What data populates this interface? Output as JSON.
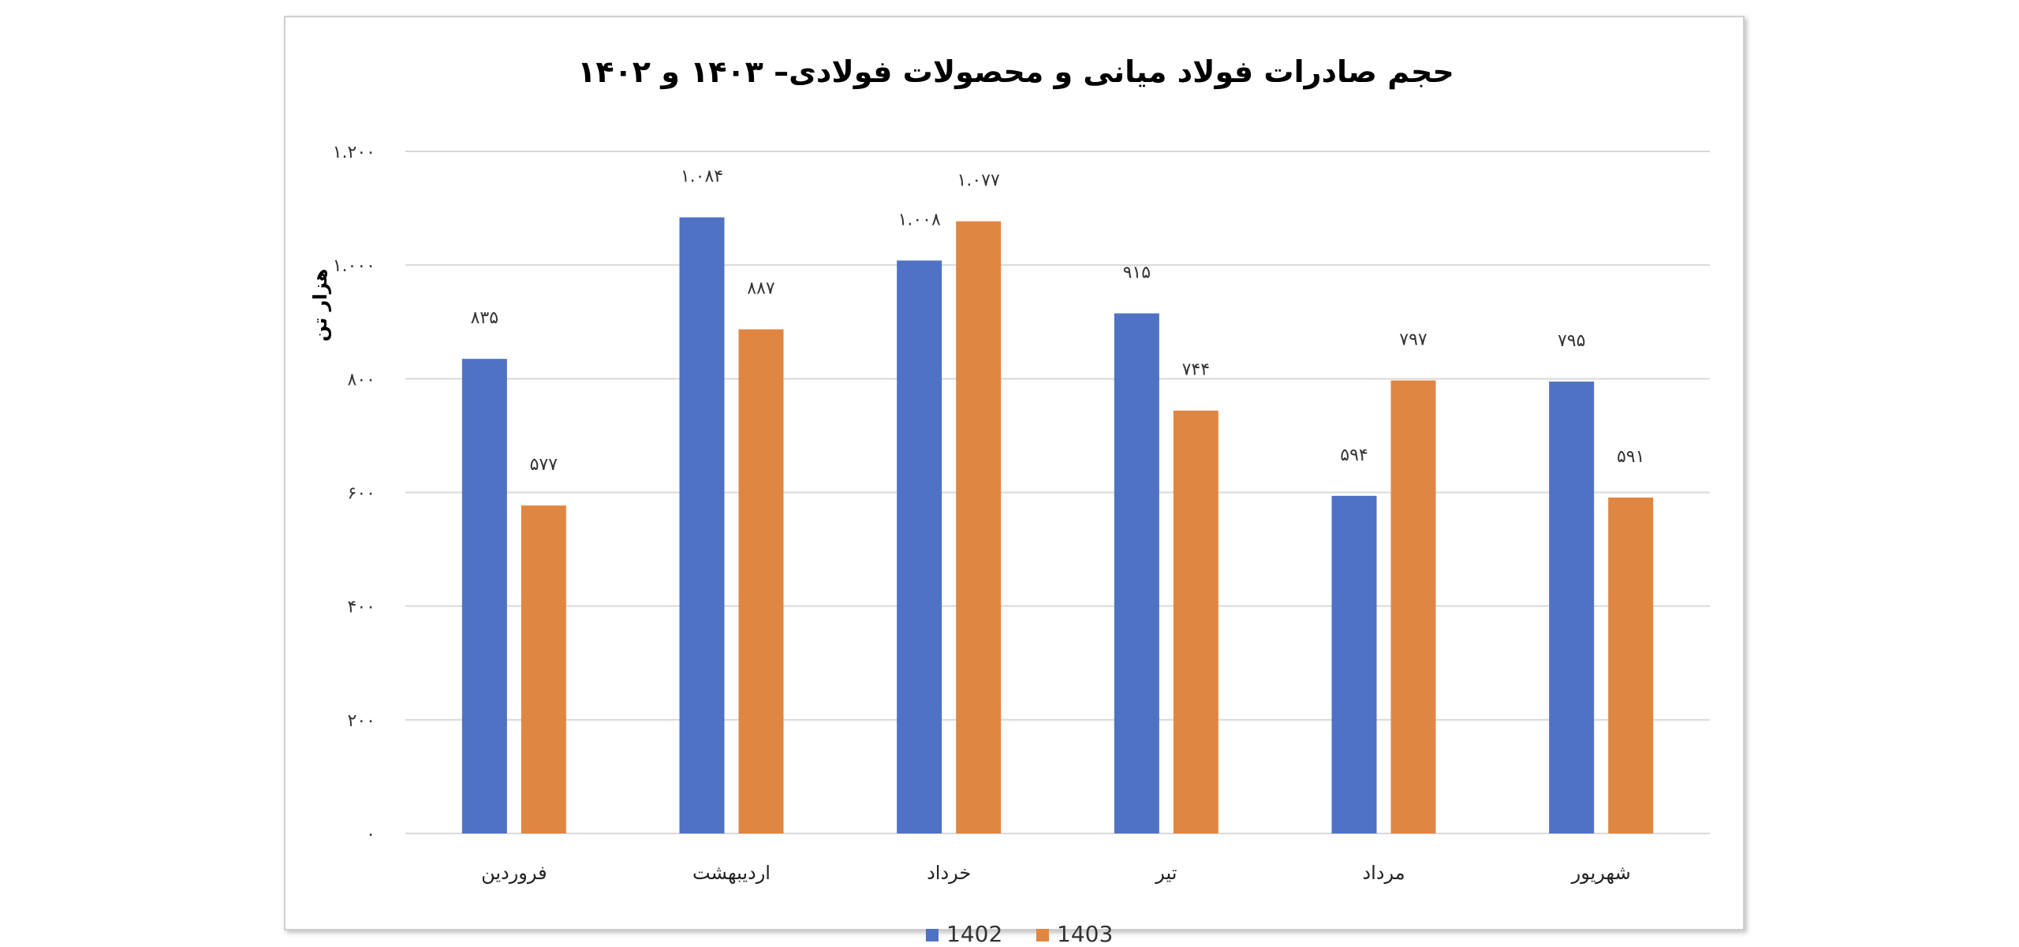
{
  "chart_data": {
    "type": "bar",
    "title": "حجم صادرات فولاد میانی و محصولات فولادی– ۱۴۰۳ و ۱۴۰۲",
    "ylabel": "هزار تن",
    "xlabel": "",
    "categories": [
      "فروردین",
      "اردیبهشت",
      "خرداد",
      "تیر",
      "مرداد",
      "شهریور"
    ],
    "ylim": [
      0,
      1200
    ],
    "yticks": [
      0,
      200,
      400,
      600,
      800,
      1000,
      1200
    ],
    "ytick_labels": [
      "۰",
      "۲۰۰",
      "۴۰۰",
      "۶۰۰",
      "۸۰۰",
      "۱.۰۰۰",
      "۱.۲۰۰"
    ],
    "grid": true,
    "legend_position": "bottom",
    "series": [
      {
        "name": "1402",
        "color": "#4f72c4",
        "values": [
          835,
          1084,
          1008,
          915,
          594,
          795
        ],
        "labels": [
          "۸۳۵",
          "۱.۰۸۴",
          "۱.۰۰۸",
          "۹۱۵",
          "۵۹۴",
          "۷۹۵"
        ]
      },
      {
        "name": "1403",
        "color": "#e08643",
        "values": [
          577,
          887,
          1077,
          744,
          797,
          591
        ],
        "labels": [
          "۵۷۷",
          "۸۸۷",
          "۱.۰۷۷",
          "۷۴۴",
          "۷۹۷",
          "۵۹۱"
        ]
      }
    ]
  }
}
